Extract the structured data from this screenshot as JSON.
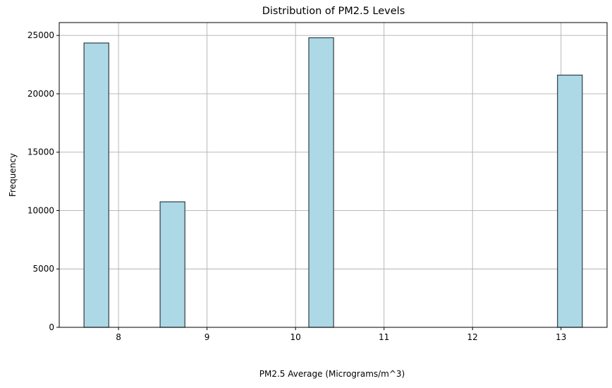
{
  "chart_data": {
    "type": "bar",
    "title": "Distribution of PM2.5 Levels",
    "xlabel": "PM2.5 Average (Micrograms/m^3)",
    "ylabel": "Frequency",
    "xlim": [
      7.33,
      13.52
    ],
    "ylim": [
      0,
      26100
    ],
    "x_ticks": [
      8,
      9,
      10,
      11,
      12,
      13
    ],
    "y_ticks": [
      0,
      5000,
      10000,
      15000,
      20000,
      25000
    ],
    "grid": true,
    "bins": [
      {
        "x0": 7.61,
        "x1": 7.89,
        "value": 24350
      },
      {
        "x0": 8.47,
        "x1": 8.75,
        "value": 10750
      },
      {
        "x0": 10.15,
        "x1": 10.43,
        "value": 24800
      },
      {
        "x0": 12.96,
        "x1": 13.24,
        "value": 21600
      }
    ],
    "colors": {
      "bar_fill": "#add8e6",
      "bar_edge": "#2f3e46",
      "grid": "#b0b0b0"
    }
  }
}
